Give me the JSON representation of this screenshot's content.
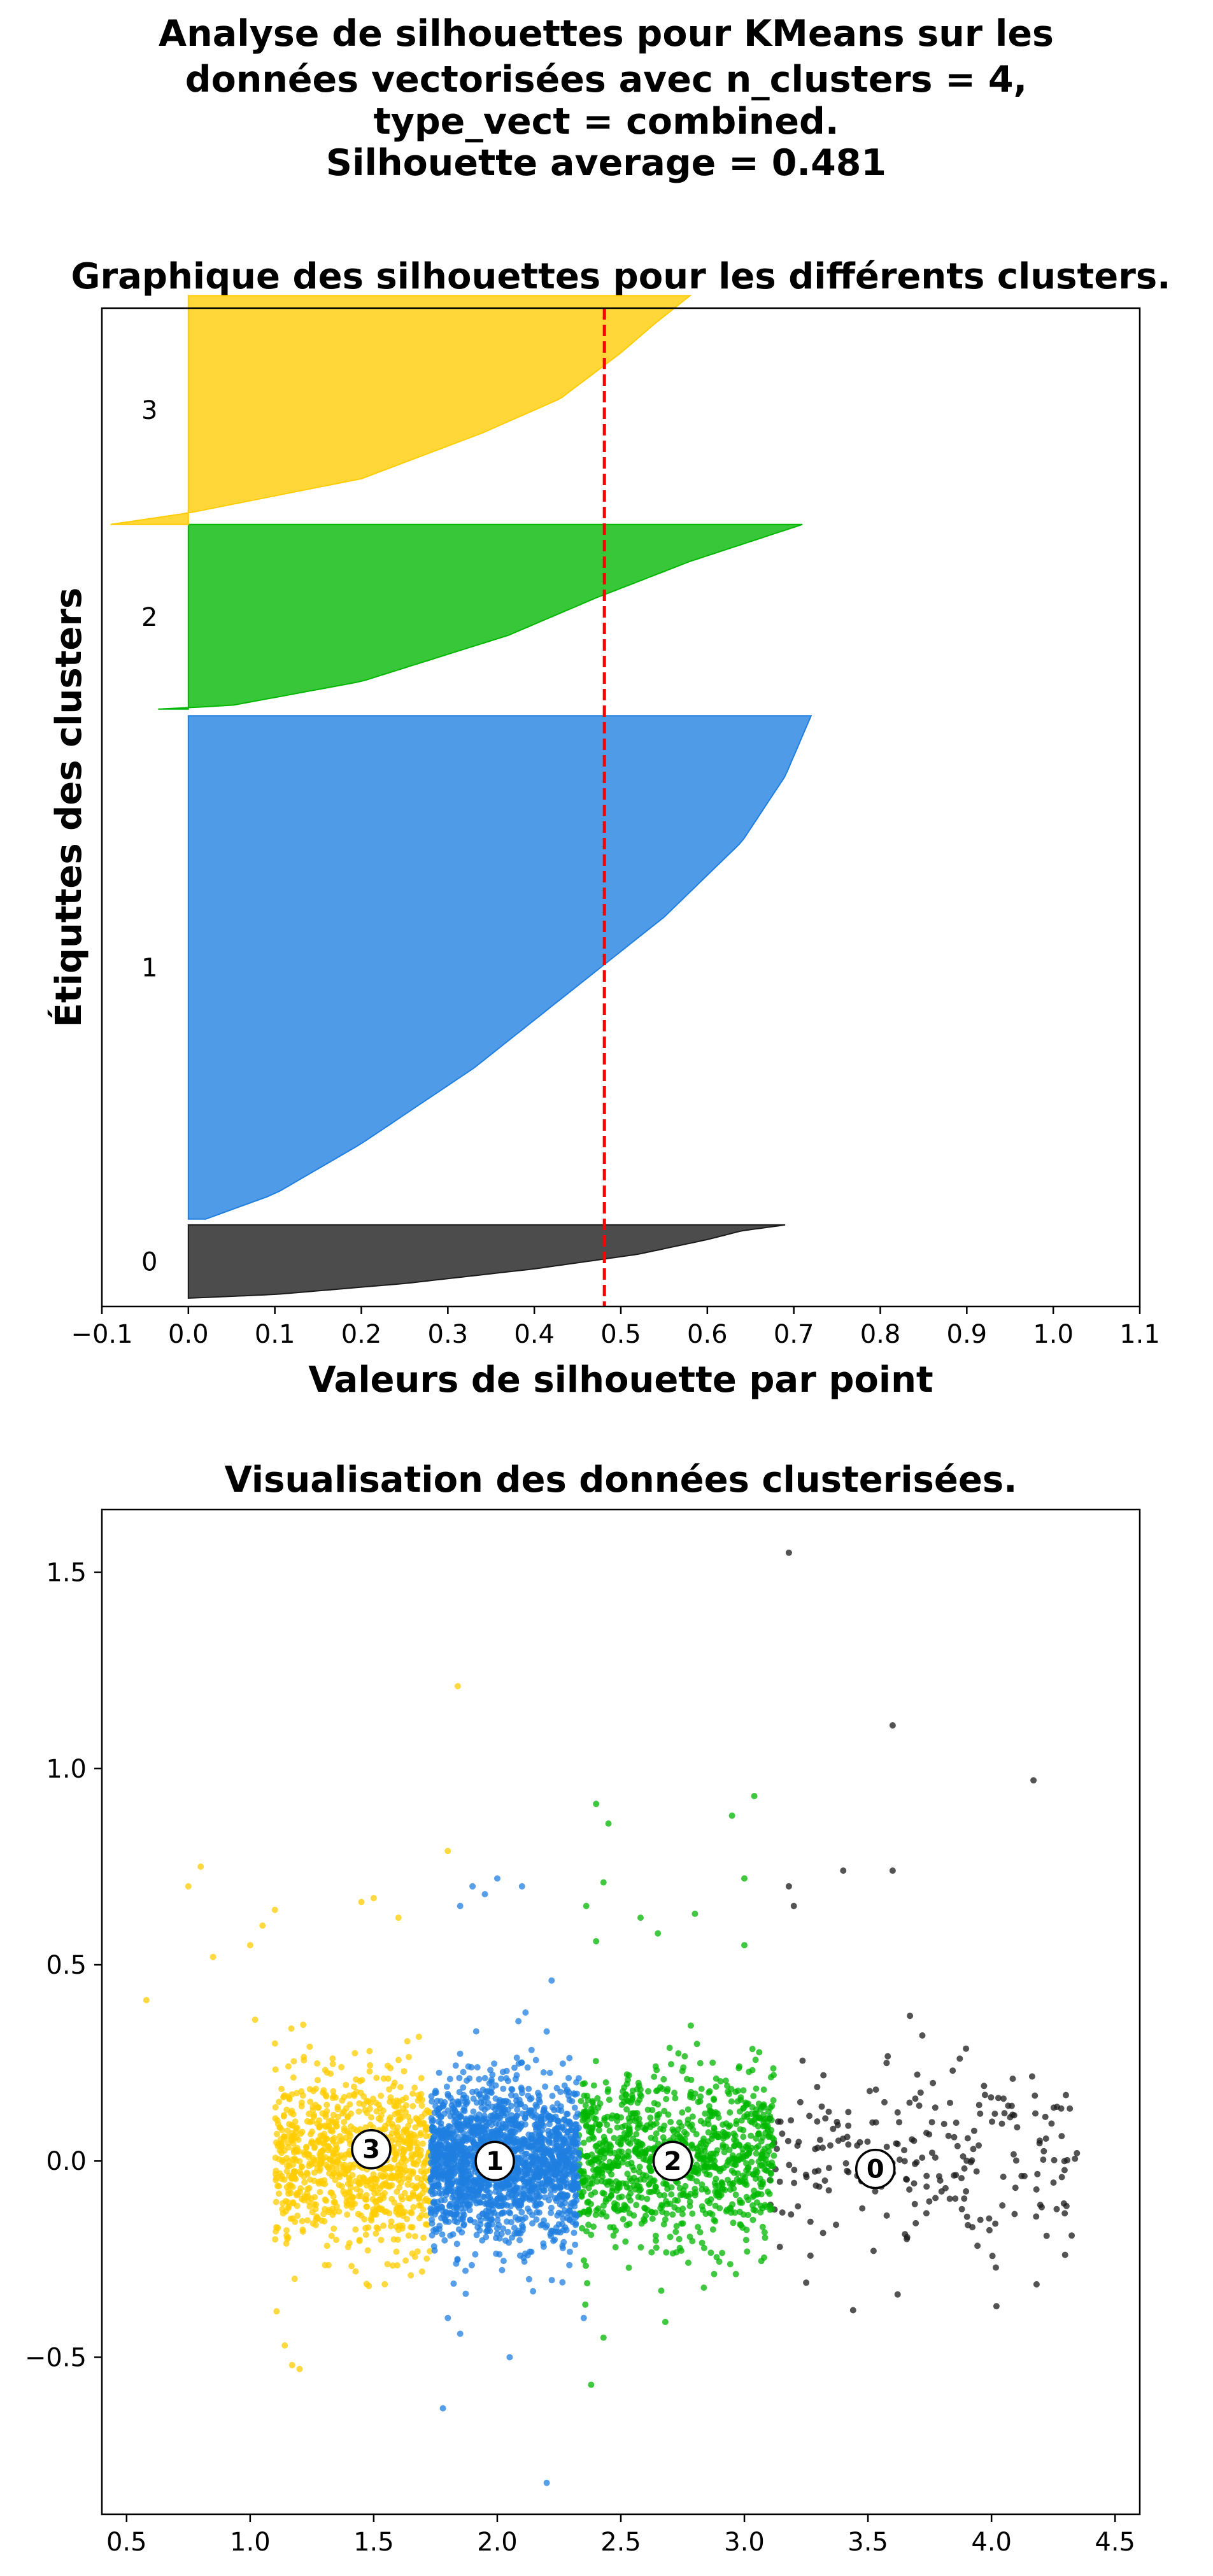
{
  "figure": {
    "suptitle": [
      "Analyse de silhouettes pour KMeans sur les",
      "données vectorisées avec n_clusters = 4,",
      "type_vect = combined.",
      "Silhouette average = 0.481"
    ]
  },
  "chart_data": [
    {
      "type": "area",
      "kind": "silhouette",
      "title": "Graphique des silhouettes pour les différents clusters.",
      "xlabel": "Valeurs de silhouette par point",
      "ylabel": "Étiquttes des clusters",
      "xlim": [
        -0.1,
        1.1
      ],
      "ylim": [
        -0.5,
        11.5
      ],
      "xticks": [
        "−0.1",
        "0.0",
        "0.1",
        "0.2",
        "0.3",
        "0.4",
        "0.5",
        "0.6",
        "0.7",
        "0.8",
        "0.9",
        "1.0",
        "1.1"
      ],
      "xtick_values": [
        -0.1,
        0,
        0.1,
        0.2,
        0.3,
        0.4,
        0.5,
        0.6,
        0.7,
        0.8,
        0.9,
        1.0,
        1.1
      ],
      "grid": false,
      "silhouette_average": 0.481,
      "reference_line": {
        "x": 0.481,
        "color": "#ff0000",
        "style": "dashed"
      },
      "clusters": [
        {
          "label": "0",
          "color": "#1a1a1a",
          "y_start": -0.4,
          "y_end": 0.48,
          "profile": [
            [
              0,
              0.0
            ],
            [
              0.05,
              0.1
            ],
            [
              0.2,
              0.25
            ],
            [
              0.4,
              0.4
            ],
            [
              0.6,
              0.52
            ],
            [
              0.8,
              0.6
            ],
            [
              0.92,
              0.64
            ],
            [
              1,
              0.69
            ]
          ]
        },
        {
          "label": "1",
          "color": "#1f7fe0",
          "y_start": 0.55,
          "y_end": 6.6,
          "profile": [
            [
              0,
              0.02
            ],
            [
              0.05,
              0.1
            ],
            [
              0.15,
              0.2
            ],
            [
              0.3,
              0.33
            ],
            [
              0.45,
              0.44
            ],
            [
              0.6,
              0.55
            ],
            [
              0.75,
              0.64
            ],
            [
              0.88,
              0.69
            ],
            [
              1,
              0.72
            ]
          ]
        },
        {
          "label": "2",
          "color": "#00b700",
          "y_start": 6.68,
          "y_end": 8.9,
          "profile": [
            [
              0,
              -0.035
            ],
            [
              0.02,
              0.05
            ],
            [
              0.15,
              0.2
            ],
            [
              0.4,
              0.37
            ],
            [
              0.6,
              0.47
            ],
            [
              0.8,
              0.58
            ],
            [
              1,
              0.71
            ]
          ]
        },
        {
          "label": "3",
          "color": "#ffcc00",
          "y_start": 8.9,
          "y_end": 11.65,
          "profile": [
            [
              0,
              -0.09
            ],
            [
              0.05,
              0.0
            ],
            [
              0.2,
              0.2
            ],
            [
              0.4,
              0.34
            ],
            [
              0.55,
              0.43
            ],
            [
              0.75,
              0.5
            ],
            [
              0.88,
              0.54
            ],
            [
              1,
              0.58
            ]
          ]
        }
      ]
    },
    {
      "type": "scatter",
      "title": "Visualisation des données clusterisées.",
      "xlim": [
        0.4,
        4.6
      ],
      "ylim": [
        -0.9,
        1.66
      ],
      "xticks": [
        "0.5",
        "1.0",
        "1.5",
        "2.0",
        "2.5",
        "3.0",
        "3.5",
        "4.0",
        "4.5"
      ],
      "xtick_values": [
        0.5,
        1.0,
        1.5,
        2.0,
        2.5,
        3.0,
        3.5,
        4.0,
        4.5
      ],
      "yticks": [
        "−0.5",
        "0.0",
        "0.5",
        "1.0",
        "1.5"
      ],
      "ytick_values": [
        -0.5,
        0,
        0.5,
        1.0,
        1.5
      ],
      "grid": false,
      "series": [
        {
          "cluster": "0",
          "color": "#1a1a1a",
          "x_range": [
            3.1,
            4.35
          ],
          "spread_y": 0.12,
          "count": 230,
          "outliers": [
            [
              3.18,
              1.55
            ],
            [
              3.6,
              1.11
            ],
            [
              4.17,
              0.97
            ],
            [
              3.18,
              0.7
            ],
            [
              3.6,
              0.74
            ],
            [
              3.2,
              0.65
            ],
            [
              3.4,
              0.74
            ],
            [
              3.67,
              0.37
            ],
            [
              3.72,
              0.32
            ],
            [
              3.44,
              -0.38
            ],
            [
              4.02,
              -0.37
            ],
            [
              3.62,
              -0.34
            ],
            [
              3.25,
              -0.31
            ]
          ]
        },
        {
          "cluster": "1",
          "color": "#1f7fe0",
          "x_range": [
            1.73,
            2.33
          ],
          "spread_y": 0.1,
          "count": 1800,
          "outliers": [
            [
              1.85,
              0.65
            ],
            [
              1.9,
              0.7
            ],
            [
              1.95,
              0.68
            ],
            [
              2.0,
              0.72
            ],
            [
              2.1,
              0.7
            ],
            [
              2.22,
              0.46
            ],
            [
              2.2,
              0.33
            ],
            [
              1.8,
              -0.4
            ],
            [
              1.85,
              -0.44
            ],
            [
              2.05,
              -0.5
            ],
            [
              1.78,
              -0.63
            ],
            [
              2.2,
              -0.82
            ],
            [
              2.35,
              -0.4
            ]
          ]
        },
        {
          "cluster": "2",
          "color": "#00b700",
          "x_range": [
            2.33,
            3.12
          ],
          "spread_y": 0.11,
          "count": 1000,
          "outliers": [
            [
              2.4,
              0.91
            ],
            [
              2.45,
              0.86
            ],
            [
              3.04,
              0.93
            ],
            [
              2.95,
              0.88
            ],
            [
              2.43,
              0.71
            ],
            [
              3.0,
              0.72
            ],
            [
              2.58,
              0.62
            ],
            [
              2.36,
              0.65
            ],
            [
              2.8,
              0.63
            ],
            [
              3.0,
              0.55
            ],
            [
              2.4,
              0.56
            ],
            [
              2.65,
              0.58
            ],
            [
              2.43,
              -0.45
            ],
            [
              2.38,
              -0.57
            ],
            [
              2.68,
              -0.41
            ]
          ]
        },
        {
          "cluster": "3",
          "color": "#ffcc00",
          "x_range": [
            1.1,
            1.73
          ],
          "spread_y": 0.11,
          "count": 900,
          "outliers": [
            [
              1.84,
              1.21
            ],
            [
              0.58,
              0.41
            ],
            [
              0.75,
              0.7
            ],
            [
              0.8,
              0.75
            ],
            [
              0.85,
              0.52
            ],
            [
              1.0,
              0.55
            ],
            [
              1.05,
              0.6
            ],
            [
              1.1,
              0.64
            ],
            [
              1.45,
              0.66
            ],
            [
              1.5,
              0.67
            ],
            [
              1.6,
              0.62
            ],
            [
              1.8,
              0.79
            ],
            [
              1.02,
              0.36
            ],
            [
              1.14,
              -0.47
            ],
            [
              1.17,
              -0.52
            ],
            [
              1.2,
              -0.53
            ],
            [
              1.18,
              -0.3
            ]
          ]
        }
      ],
      "centroids": [
        {
          "label": "0",
          "x": 3.53,
          "y": -0.02
        },
        {
          "label": "1",
          "x": 1.99,
          "y": 0.0
        },
        {
          "label": "2",
          "x": 2.71,
          "y": 0.0
        },
        {
          "label": "3",
          "x": 1.49,
          "y": 0.03
        }
      ]
    }
  ]
}
